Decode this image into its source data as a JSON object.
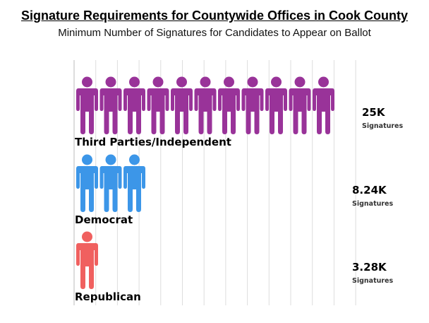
{
  "chart_data": {
    "type": "pictograph",
    "title": "Signature Requirements for Countywide Offices in Cook County",
    "subtitle": "Minimum Number of Signatures for Candidates to Appear on Ballot",
    "unit_label": "Signatures",
    "grid": true,
    "series": [
      {
        "name": "Third Parties/Independent",
        "value": 25000,
        "value_label": "25K",
        "icons": 11,
        "color": "#993399"
      },
      {
        "name": "Democrat",
        "value": 8240,
        "value_label": "8.24K",
        "icons": 3,
        "color": "#3c96e8"
      },
      {
        "name": "Republican",
        "value": 3280,
        "value_label": "3.28K",
        "icons": 1,
        "color": "#f0605f"
      }
    ]
  }
}
